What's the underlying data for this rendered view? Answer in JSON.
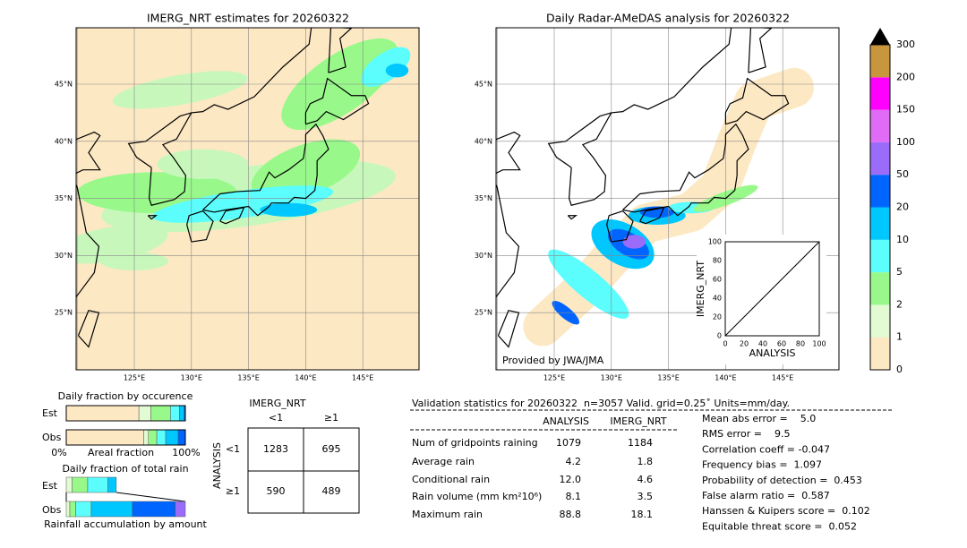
{
  "left_map": {
    "title": "IMERG_NRT estimates for 20260322"
  },
  "right_map": {
    "title": "Daily Radar-AMeDAS analysis for 20260322",
    "credit": "Provided by JWA/JMA",
    "inset": {
      "xlabel": "ANALYSIS",
      "ylabel": "IMERG_NRT",
      "ticks": [
        "0",
        "20",
        "40",
        "60",
        "80",
        "100"
      ]
    }
  },
  "lat_labels": [
    "45°N",
    "40°N",
    "35°N",
    "30°N",
    "25°N"
  ],
  "lon_labels": [
    "125°E",
    "130°E",
    "135°E",
    "140°E",
    "145°E"
  ],
  "colorbar": {
    "labels": [
      "0",
      "1",
      "2",
      "5",
      "10",
      "20",
      "50",
      "100",
      "150",
      "200",
      "300"
    ],
    "colors": [
      "#fde8c4",
      "#e2fbd2",
      "#98f98a",
      "#5cfdfd",
      "#00c8ff",
      "#0064ff",
      "#9a6cf9",
      "#e06cf6",
      "#ff00ff",
      "#c8963c"
    ]
  },
  "occurrence": {
    "title": "Daily fraction by occurence",
    "rows": [
      "Est",
      "Obs"
    ],
    "axis": [
      "0%",
      "Areal fraction",
      "100%"
    ],
    "est": [
      0.61,
      0.1,
      0.165,
      0.075,
      0.04,
      0.01
    ],
    "est_colors": [
      "#fde8c4",
      "#e2fbd2",
      "#98f98a",
      "#5cfdfd",
      "#00c8ff",
      "#0064ff"
    ],
    "obs": [
      0.65,
      0.04,
      0.07,
      0.075,
      0.105,
      0.06
    ],
    "obs_colors": [
      "#fde8c4",
      "#e2fbd2",
      "#98f98a",
      "#5cfdfd",
      "#00c8ff",
      "#0064ff"
    ]
  },
  "total_rain": {
    "title": "Daily fraction of total rain",
    "rows": [
      "Est",
      "Obs"
    ],
    "caption": "Rainfall accumulation by amount",
    "est": [
      0.05,
      0.13,
      0.17,
      0.07
    ],
    "est_colors": [
      "#e2fbd2",
      "#98f98a",
      "#5cfdfd",
      "#00c8ff"
    ],
    "obs": [
      0.03,
      0.05,
      0.13,
      0.345,
      0.36,
      0.085
    ],
    "obs_colors": [
      "#e2fbd2",
      "#98f98a",
      "#5cfdfd",
      "#00c8ff",
      "#0064ff",
      "#9a6cf9"
    ]
  },
  "contingency": {
    "title": "IMERG_NRT",
    "cols": [
      "<1",
      "≥1"
    ],
    "row_axis": "ANALYSIS",
    "rows": [
      "<1",
      "≥1"
    ],
    "cells": [
      [
        "1283",
        "695"
      ],
      [
        "590",
        "489"
      ]
    ]
  },
  "validation": {
    "header": "Validation statistics for 20260322  n=3057 Valid. grid=0.25˚ Units=mm/day.",
    "columns": [
      "ANALYSIS",
      "IMERG_NRT"
    ],
    "rows": [
      {
        "label": "Num of gridpoints raining",
        "values": [
          "1079",
          "1184"
        ]
      },
      {
        "label": "Average rain",
        "values": [
          "4.2",
          "1.8"
        ]
      },
      {
        "label": "Conditional rain",
        "values": [
          "12.0",
          "4.6"
        ]
      },
      {
        "label": "Rain volume (mm km²10⁶)",
        "values": [
          "8.1",
          "3.5"
        ]
      },
      {
        "label": "Maximum rain",
        "values": [
          "88.8",
          "18.1"
        ]
      }
    ],
    "scores": [
      "Mean abs error =    5.0",
      "RMS error =    9.5",
      "Correlation coeff = -0.047",
      "Frequency bias =  1.097",
      "Probability of detection =  0.453",
      "False alarm ratio =  0.587",
      "Hanssen & Kuipers score =  0.102",
      "Equitable threat score =  0.052"
    ]
  }
}
